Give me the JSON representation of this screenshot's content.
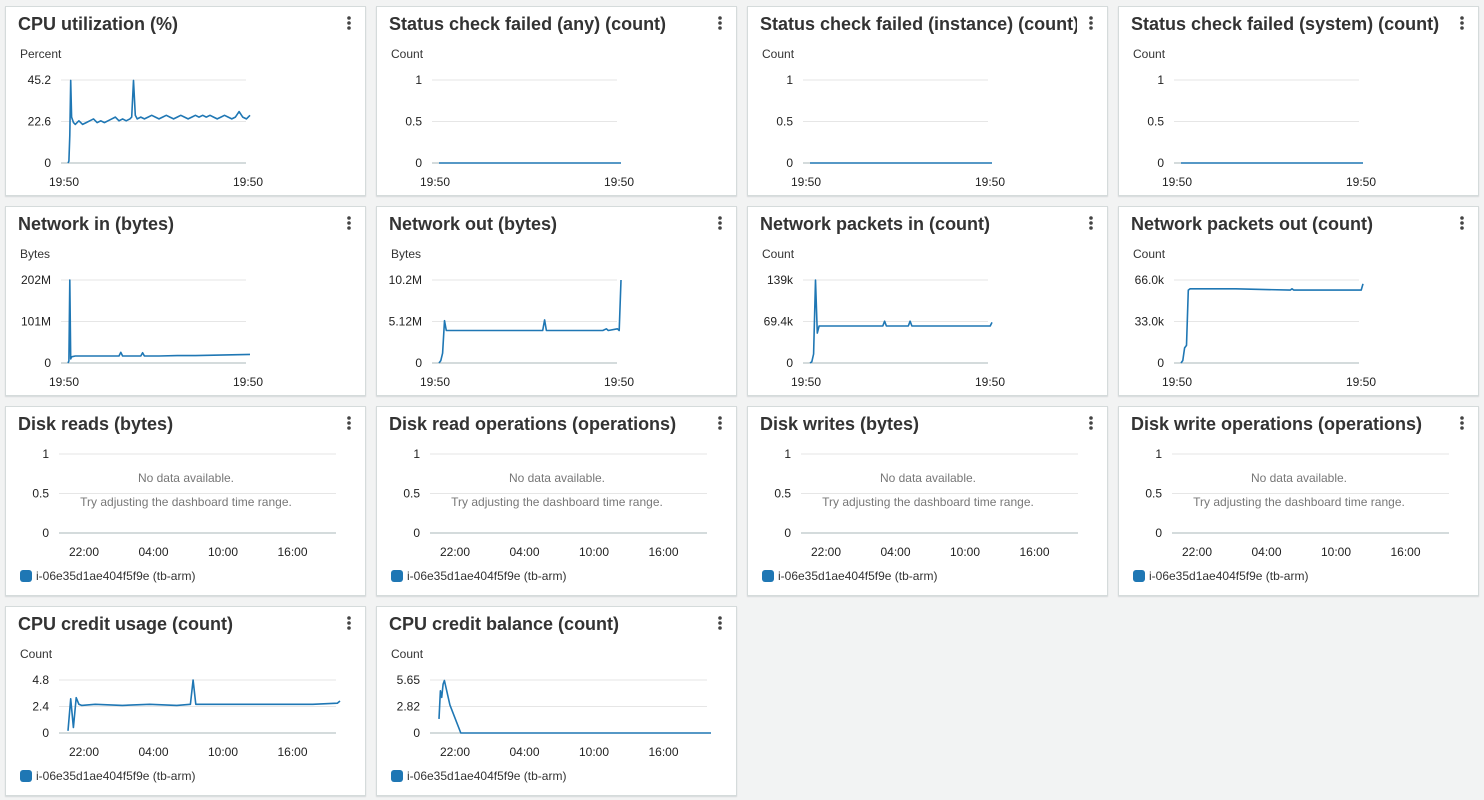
{
  "colors": {
    "series": "#1f77b4",
    "grid": "#e6e6e6",
    "axis": "#aab7b8"
  },
  "icons": {
    "menu": "vertical-ellipsis-icon"
  },
  "widgets": [
    {
      "title": "CPU utilization (%)",
      "chart_data": {
        "type": "line",
        "unit_label": "Percent",
        "y_ticks": [
          "45.2",
          "22.6",
          "0"
        ],
        "ylim": [
          0,
          45.2
        ],
        "x_ticks": [
          "19:50",
          "19:50"
        ],
        "x": [
          0,
          0.5,
          1,
          1.5,
          2,
          3,
          4,
          5,
          6,
          7,
          8,
          10,
          12,
          14,
          16,
          18,
          20,
          22,
          24,
          26,
          28,
          30,
          32,
          34,
          35,
          36,
          37,
          38,
          40,
          42,
          44,
          46,
          48,
          50,
          52,
          54,
          56,
          58,
          60,
          62,
          64,
          66,
          68,
          70,
          72,
          74,
          76,
          78,
          80,
          82,
          84,
          86,
          88,
          90,
          92,
          94,
          96,
          98,
          100
        ],
        "values": [
          0,
          1,
          15,
          45,
          25,
          22,
          21,
          22,
          23,
          22,
          21,
          22,
          23,
          24,
          22,
          23,
          22,
          23,
          24,
          25,
          23,
          24,
          23,
          24,
          25,
          45,
          26,
          24,
          25,
          24,
          25,
          26,
          25,
          24,
          25,
          26,
          25,
          24,
          25,
          26,
          25,
          24,
          25,
          26,
          25,
          26,
          25,
          26,
          25,
          24,
          25,
          26,
          25,
          24,
          25,
          28,
          25,
          24,
          26
        ]
      }
    },
    {
      "title": "Status check failed (any) (count)",
      "chart_data": {
        "type": "line",
        "unit_label": "Count",
        "y_ticks": [
          "1",
          "0.5",
          "0"
        ],
        "ylim": [
          0,
          1
        ],
        "x_ticks": [
          "19:50",
          "19:50"
        ],
        "x": [
          0,
          100
        ],
        "values": [
          0,
          0
        ]
      }
    },
    {
      "title": "Status check failed (instance) (count)",
      "chart_data": {
        "type": "line",
        "unit_label": "Count",
        "y_ticks": [
          "1",
          "0.5",
          "0"
        ],
        "ylim": [
          0,
          1
        ],
        "x_ticks": [
          "19:50",
          "19:50"
        ],
        "x": [
          0,
          100
        ],
        "values": [
          0,
          0
        ]
      }
    },
    {
      "title": "Status check failed (system) (count)",
      "chart_data": {
        "type": "line",
        "unit_label": "Count",
        "y_ticks": [
          "1",
          "0.5",
          "0"
        ],
        "ylim": [
          0,
          1
        ],
        "x_ticks": [
          "19:50",
          "19:50"
        ],
        "x": [
          0,
          100
        ],
        "values": [
          0,
          0
        ]
      }
    },
    {
      "title": "Network in (bytes)",
      "chart_data": {
        "type": "line",
        "unit_label": "Bytes",
        "y_ticks": [
          "202M",
          "101M",
          "0"
        ],
        "ylim": [
          0,
          202
        ],
        "x_ticks": [
          "19:50",
          "19:50"
        ],
        "x": [
          0,
          0.5,
          1,
          1.5,
          2,
          4,
          10,
          20,
          28,
          29,
          30,
          40,
          41,
          42,
          50,
          60,
          70,
          80,
          90,
          100
        ],
        "values": [
          0,
          5,
          202,
          10,
          15,
          17,
          17,
          17,
          17,
          26,
          17,
          17,
          25,
          17,
          17,
          18,
          18,
          19,
          20,
          21
        ]
      }
    },
    {
      "title": "Network out (bytes)",
      "chart_data": {
        "type": "line",
        "unit_label": "Bytes",
        "y_ticks": [
          "10.2M",
          "5.12M",
          "0"
        ],
        "ylim": [
          0,
          10.2
        ],
        "x_ticks": [
          "19:50",
          "19:50"
        ],
        "x": [
          0,
          1,
          2,
          3,
          4,
          10,
          30,
          57,
          58,
          59,
          70,
          80,
          90,
          92,
          93,
          98,
          99,
          100
        ],
        "values": [
          0,
          0.3,
          1.2,
          5.2,
          4,
          4,
          4,
          4,
          5.3,
          4,
          4,
          4,
          4,
          4.2,
          4,
          4.2,
          4,
          10.2
        ]
      }
    },
    {
      "title": "Network packets in (count)",
      "chart_data": {
        "type": "line",
        "unit_label": "Count",
        "y_ticks": [
          "139k",
          "69.4k",
          "0"
        ],
        "ylim": [
          0,
          139
        ],
        "x_ticks": [
          "19:50",
          "19:50"
        ],
        "x": [
          0,
          1,
          2,
          3,
          4,
          5,
          20,
          40,
          41,
          42,
          50,
          54,
          55,
          56,
          70,
          90,
          99,
          100
        ],
        "values": [
          0,
          2,
          15,
          139,
          50,
          62,
          62,
          62,
          70,
          62,
          62,
          62,
          70,
          62,
          62,
          62,
          62,
          68
        ]
      }
    },
    {
      "title": "Network packets out (count)",
      "chart_data": {
        "type": "line",
        "unit_label": "Count",
        "y_ticks": [
          "66.0k",
          "33.0k",
          "0"
        ],
        "ylim": [
          0,
          66
        ],
        "x_ticks": [
          "19:50",
          "19:50"
        ],
        "x": [
          0,
          1,
          2,
          3,
          4,
          5,
          30,
          60,
          61,
          62,
          80,
          99,
          100
        ],
        "values": [
          0,
          2,
          12,
          14,
          58,
          59,
          59,
          58,
          59,
          58,
          58,
          58,
          63
        ]
      }
    },
    {
      "title": "Disk reads (bytes)",
      "no_data": true,
      "message": "No data available.",
      "hint": "Try adjusting the dashboard time range.",
      "legend": "i-06e35d1ae404f5f9e (tb-arm)",
      "chart_data": {
        "type": "line",
        "y_ticks": [
          "1",
          "0.5",
          "0"
        ],
        "ylim": [
          0,
          1
        ],
        "x_ticks": [
          "22:00",
          "04:00",
          "10:00",
          "16:00"
        ],
        "x": [],
        "values": []
      }
    },
    {
      "title": "Disk read operations (operations)",
      "no_data": true,
      "message": "No data available.",
      "hint": "Try adjusting the dashboard time range.",
      "legend": "i-06e35d1ae404f5f9e (tb-arm)",
      "chart_data": {
        "type": "line",
        "y_ticks": [
          "1",
          "0.5",
          "0"
        ],
        "ylim": [
          0,
          1
        ],
        "x_ticks": [
          "22:00",
          "04:00",
          "10:00",
          "16:00"
        ],
        "x": [],
        "values": []
      }
    },
    {
      "title": "Disk writes (bytes)",
      "no_data": true,
      "message": "No data available.",
      "hint": "Try adjusting the dashboard time range.",
      "legend": "i-06e35d1ae404f5f9e (tb-arm)",
      "chart_data": {
        "type": "line",
        "y_ticks": [
          "1",
          "0.5",
          "0"
        ],
        "ylim": [
          0,
          1
        ],
        "x_ticks": [
          "22:00",
          "04:00",
          "10:00",
          "16:00"
        ],
        "x": [],
        "values": []
      }
    },
    {
      "title": "Disk write operations (operations)",
      "no_data": true,
      "message": "No data available.",
      "hint": "Try adjusting the dashboard time range.",
      "legend": "i-06e35d1ae404f5f9e (tb-arm)",
      "chart_data": {
        "type": "line",
        "y_ticks": [
          "1",
          "0.5",
          "0"
        ],
        "ylim": [
          0,
          1
        ],
        "x_ticks": [
          "22:00",
          "04:00",
          "10:00",
          "16:00"
        ],
        "x": [],
        "values": []
      }
    },
    {
      "title": "CPU credit usage (count)",
      "legend": "i-06e35d1ae404f5f9e (tb-arm)",
      "chart_data": {
        "type": "line",
        "unit_label": "Count",
        "y_ticks": [
          "4.8",
          "2.4",
          "0"
        ],
        "ylim": [
          0,
          4.8
        ],
        "x_ticks": [
          "22:00",
          "04:00",
          "10:00",
          "16:00"
        ],
        "x": [
          0,
          1,
          2,
          3,
          4,
          5,
          10,
          20,
          30,
          40,
          45,
          46,
          47,
          50,
          60,
          70,
          80,
          90,
          99,
          100
        ],
        "values": [
          0.2,
          3.1,
          0.5,
          3.2,
          2.6,
          2.5,
          2.6,
          2.5,
          2.6,
          2.5,
          2.6,
          4.8,
          2.6,
          2.6,
          2.6,
          2.6,
          2.6,
          2.6,
          2.7,
          2.9
        ]
      }
    },
    {
      "title": "CPU credit balance (count)",
      "legend": "i-06e35d1ae404f5f9e (tb-arm)",
      "chart_data": {
        "type": "line",
        "unit_label": "Count",
        "y_ticks": [
          "5.65",
          "2.82",
          "0"
        ],
        "ylim": [
          0,
          5.65
        ],
        "x_ticks": [
          "22:00",
          "04:00",
          "10:00",
          "16:00"
        ],
        "x": [
          0,
          0.5,
          1,
          1.5,
          2,
          4,
          8,
          100
        ],
        "values": [
          1.5,
          4.5,
          3.8,
          5.2,
          5.6,
          3,
          0,
          0
        ]
      }
    }
  ]
}
